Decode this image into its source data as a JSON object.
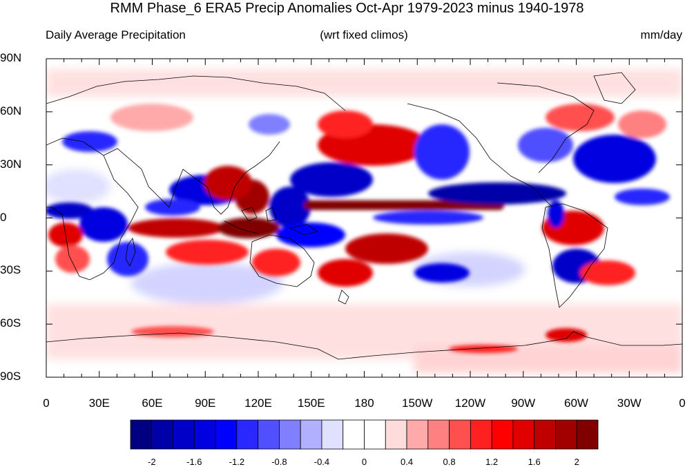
{
  "title": "RMM Phase_6 ERA5 Precip Anomalies Oct-Apr 1979-2023 minus 1940-1978",
  "subtitle_left": "Daily Average Precipitation",
  "subtitle_center": "(wrt fixed climos)",
  "subtitle_right": "mm/day",
  "map": {
    "projection": "cylindrical-equidistant",
    "lon_range": [
      0,
      360
    ],
    "lat_range": [
      -90,
      90
    ],
    "lat_labels": [
      "90N",
      "60N",
      "30N",
      "0",
      "30S",
      "60S",
      "90S"
    ],
    "lon_labels": [
      "0",
      "30E",
      "60E",
      "90E",
      "120E",
      "150E",
      "180",
      "150W",
      "120W",
      "90W",
      "60W",
      "30W",
      "0"
    ],
    "colors": {
      "negative_strong": "#00008b",
      "positive_strong": "#8b0000",
      "coastline": "#000000"
    }
  },
  "colorbar": {
    "colors": [
      "#000080",
      "#0000a8",
      "#0000c8",
      "#0000e0",
      "#0000ff",
      "#2828ff",
      "#5050ff",
      "#8080ff",
      "#b0b0ff",
      "#e0e0ff",
      "#ffffff",
      "#ffffff",
      "#ffdcdc",
      "#ffaaaa",
      "#ff8080",
      "#ff5050",
      "#ff2020",
      "#ff0000",
      "#e00000",
      "#c00000",
      "#a00000",
      "#800000"
    ],
    "labels": [
      "-2",
      "-1.6",
      "-1.2",
      "-0.8",
      "-0.4",
      "0",
      "0.4",
      "0.8",
      "1.2",
      "1.6",
      "2"
    ]
  }
}
